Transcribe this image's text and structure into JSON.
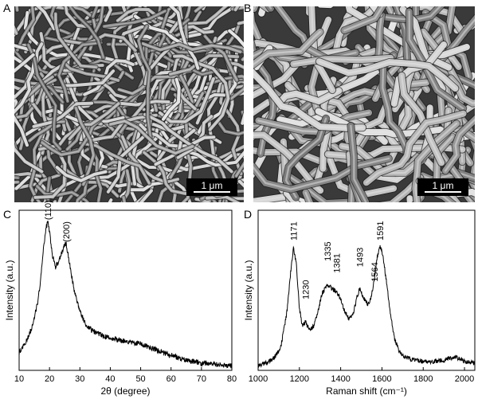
{
  "panels": {
    "a": {
      "letter": "A",
      "scale_bar": "1 μm",
      "image": "SEM micrograph of tangled nanofibers (lower magnification)"
    },
    "b": {
      "letter": "B",
      "scale_bar": "1 μm",
      "image": "SEM micrograph of tangled nanofibers (higher magnification)"
    },
    "c": {
      "letter": "C"
    },
    "d": {
      "letter": "D"
    }
  },
  "colors": {
    "line": "#000000",
    "sem_background": "#6b6b6b",
    "scalebar_bg": "#000000"
  },
  "chart_data": [
    {
      "type": "line",
      "panel": "C",
      "xlabel": "2θ (degree)",
      "ylabel": "Intensity (a.u.)",
      "xlim": [
        10,
        80
      ],
      "xticks": [
        "10",
        "20",
        "30",
        "40",
        "50",
        "60",
        "70",
        "80"
      ],
      "y_ticks_shown": false,
      "annotations": [
        {
          "label": "(110)",
          "x": 19.5,
          "y": 1.0
        },
        {
          "label": "(200)",
          "x": 25.5,
          "y": 0.85
        }
      ],
      "series": [
        {
          "x": [
            10,
            12,
            14,
            16,
            17,
            18,
            19,
            19.5,
            20,
            21,
            22,
            23,
            24,
            25,
            25.5,
            26,
            27,
            28,
            30,
            32,
            34,
            36,
            38,
            40,
            45,
            50,
            55,
            60,
            65,
            70,
            75,
            80
          ],
          "values": [
            0.12,
            0.18,
            0.28,
            0.45,
            0.6,
            0.82,
            0.98,
            1.0,
            0.94,
            0.78,
            0.7,
            0.74,
            0.8,
            0.85,
            0.86,
            0.8,
            0.68,
            0.55,
            0.4,
            0.31,
            0.27,
            0.25,
            0.23,
            0.22,
            0.2,
            0.18,
            0.14,
            0.1,
            0.07,
            0.05,
            0.04,
            0.03
          ]
        }
      ]
    },
    {
      "type": "line",
      "panel": "D",
      "xlabel": "Raman shift (cm⁻¹)",
      "ylabel": "Intensity (a.u.)",
      "xlim": [
        1000,
        2050
      ],
      "xticks": [
        "1000",
        "1200",
        "1400",
        "1600",
        "1800",
        "2000"
      ],
      "y_ticks_shown": false,
      "annotations": [
        {
          "label": "1171",
          "x": 1171,
          "y": 0.86
        },
        {
          "label": "1230",
          "x": 1230,
          "y": 0.46
        },
        {
          "label": "1335",
          "x": 1335,
          "y": 0.72
        },
        {
          "label": "1381",
          "x": 1381,
          "y": 0.64
        },
        {
          "label": "1493",
          "x": 1493,
          "y": 0.68
        },
        {
          "label": "1564",
          "x": 1564,
          "y": 0.58
        },
        {
          "label": "1591",
          "x": 1591,
          "y": 0.86
        }
      ],
      "series": [
        {
          "x": [
            1000,
            1040,
            1080,
            1110,
            1140,
            1160,
            1171,
            1185,
            1200,
            1215,
            1230,
            1250,
            1270,
            1290,
            1310,
            1335,
            1355,
            1381,
            1400,
            1420,
            1440,
            1460,
            1480,
            1493,
            1510,
            1530,
            1545,
            1564,
            1575,
            1591,
            1605,
            1620,
            1640,
            1660,
            1680,
            1700,
            1750,
            1800,
            1850,
            1900,
            1950,
            1980,
            2000,
            2050
          ],
          "values": [
            0.03,
            0.05,
            0.09,
            0.16,
            0.4,
            0.7,
            0.83,
            0.72,
            0.42,
            0.3,
            0.33,
            0.28,
            0.3,
            0.4,
            0.52,
            0.58,
            0.56,
            0.53,
            0.48,
            0.4,
            0.35,
            0.38,
            0.5,
            0.56,
            0.5,
            0.45,
            0.48,
            0.62,
            0.76,
            0.84,
            0.78,
            0.62,
            0.4,
            0.22,
            0.14,
            0.1,
            0.07,
            0.06,
            0.06,
            0.07,
            0.09,
            0.08,
            0.06,
            0.05
          ]
        }
      ]
    }
  ]
}
